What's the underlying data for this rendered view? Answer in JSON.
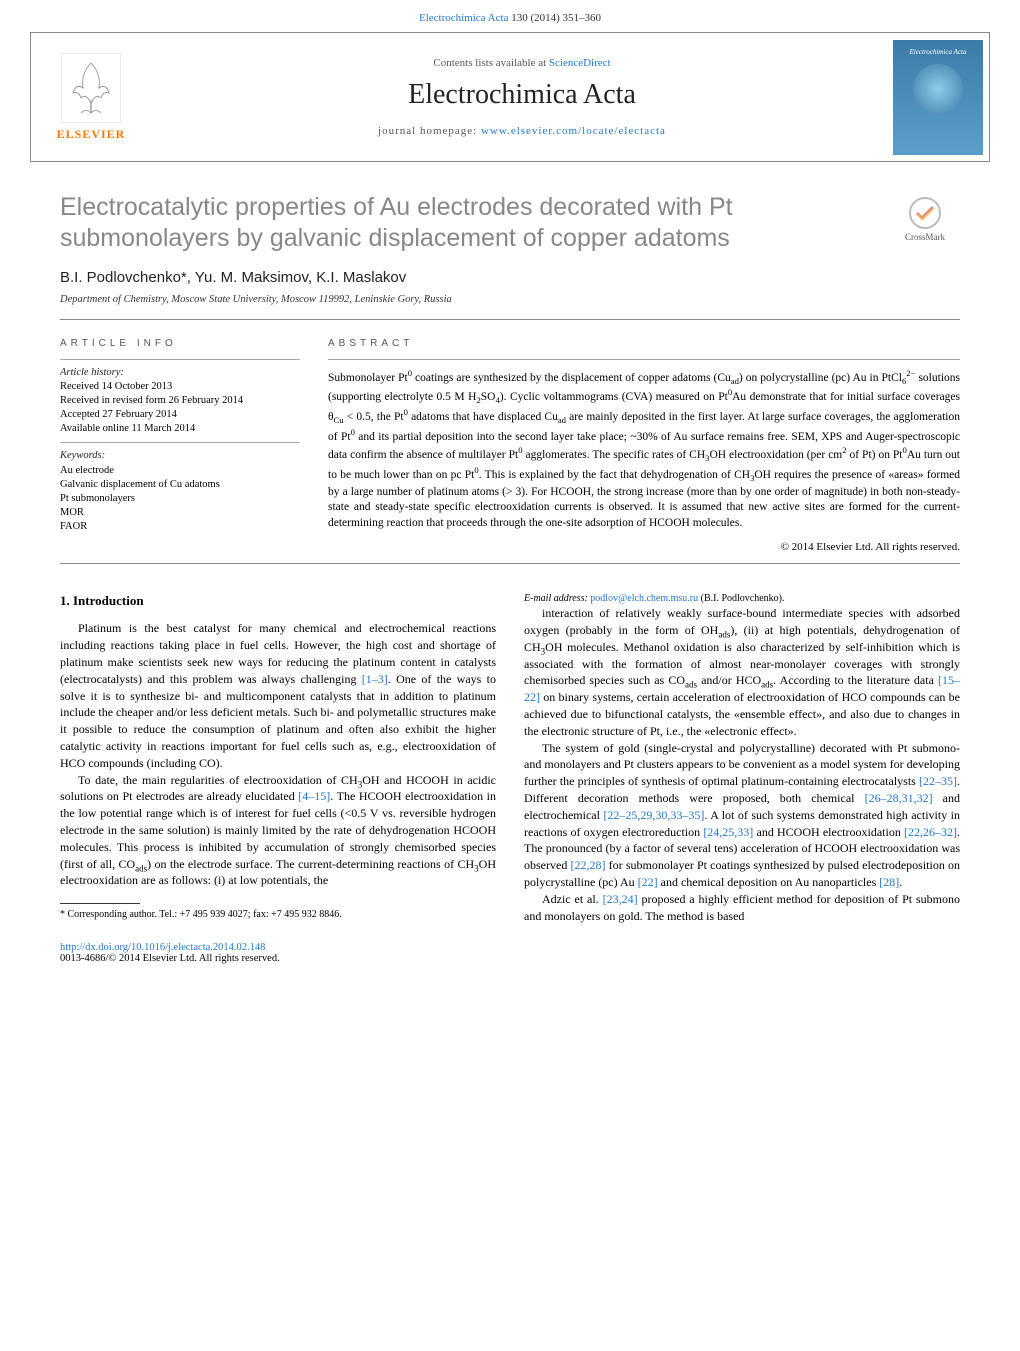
{
  "journal_ref": {
    "name": "Electrochimica Acta",
    "citation": "130 (2014) 351–360"
  },
  "header": {
    "contents_prefix": "Contents lists available at ",
    "contents_link": "ScienceDirect",
    "journal_title": "Electrochimica Acta",
    "homepage_prefix": "journal homepage: ",
    "homepage_url": "www.elsevier.com/locate/electacta",
    "publisher": "ELSEVIER",
    "cover_label": "Electrochimica Acta"
  },
  "crossmark_label": "CrossMark",
  "article": {
    "title": "Electrocatalytic properties of Au electrodes decorated with Pt submonolayers by galvanic displacement of copper adatoms",
    "authors": "B.I. Podlovchenko*, Yu. M. Maksimov, K.I. Maslakov",
    "affiliation": "Department of Chemistry, Moscow State University, Moscow 119992, Leninskie Gory, Russia"
  },
  "info": {
    "section_label": "ARTICLE INFO",
    "history_header": "Article history:",
    "history": "Received 14 October 2013\nReceived in revised form 26 February 2014\nAccepted 27 February 2014\nAvailable online 11 March 2014",
    "keywords_header": "Keywords:",
    "keywords": "Au electrode\nGalvanic displacement of Cu adatoms\nPt submonolayers\nMOR\nFAOR"
  },
  "abstract": {
    "section_label": "ABSTRACT",
    "text": "Submonolayer Pt⁰ coatings are synthesized by the displacement of copper adatoms (Cu_ad) on polycrystalline (pc) Au in PtCl₆²⁻ solutions (supporting electrolyte 0.5 M H₂SO₄). Cyclic voltammograms (CVA) measured on Pt⁰Au demonstrate that for initial surface coverages θ_Cu < 0.5, the Pt⁰ adatoms that have displaced Cu_ad are mainly deposited in the first layer. At large surface coverages, the agglomeration of Pt⁰ and its partial deposition into the second layer take place; ~30% of Au surface remains free. SEM, XPS and Auger-spectroscopic data confirm the absence of multilayer Pt⁰ agglomerates. The specific rates of CH₃OH electrooxidation (per cm² of Pt) on Pt⁰Au turn out to be much lower than on pc Pt⁰. This is explained by the fact that dehydrogenation of CH₃OH requires the presence of «areas» formed by a large number of platinum atoms (> 3). For HCOOH, the strong increase (more than by one order of magnitude) in both non-steady-state and steady-state specific electrooxidation currents is observed. It is assumed that new active sites are formed for the current-determining reaction that proceeds through the one-site adsorption of HCOOH molecules.",
    "copyright": "© 2014 Elsevier Ltd. All rights reserved."
  },
  "body": {
    "h_intro": "1. Introduction",
    "p1": "Platinum is the best catalyst for many chemical and electrochemical reactions including reactions taking place in fuel cells. However, the high cost and shortage of platinum make scientists seek new ways for reducing the platinum content in catalysts (electrocatalysts) and this problem was always challenging [1–3]. One of the ways to solve it is to synthesize bi- and multicomponent catalysts that in addition to platinum include the cheaper and/or less deficient metals. Such bi- and polymetallic structures make it possible to reduce the consumption of platinum and often also exhibit the higher catalytic activity in reactions important for fuel cells such as, e.g., electrooxidation of HCO compounds (including CO).",
    "p2": "To date, the main regularities of electrooxidation of CH₃OH and HCOOH in acidic solutions on Pt electrodes are already elucidated [4–15]. The HCOOH electrooxidation in the low potential range which is of interest for fuel cells (<0.5 V vs. reversible hydrogen electrode in the same solution) is mainly limited by the rate of dehydrogenation HCOOH molecules. This process is inhibited by accumulation of strongly chemisorbed species (first of all, CO_ads) on the electrode surface. The current-determining reactions of CH₃OH electrooxidation are as follows: (i) at low potentials, the",
    "p3": "interaction of relatively weakly surface-bound intermediate species with adsorbed oxygen (probably in the form of OH_ads), (ii) at high potentials, dehydrogenation of CH₃OH molecules. Methanol oxidation is also characterized by self-inhibition which is associated with the formation of almost near-monolayer coverages with strongly chemisorbed species such as CO_ads and/or HCO_ads. According to the literature data [15–22] on binary systems, certain acceleration of electrooxidation of HCO compounds can be achieved due to bifunctional catalysts, the «ensemble effect», and also due to changes in the electronic structure of Pt, i.e., the «electronic effect».",
    "p4": "The system of gold (single-crystal and polycrystalline) decorated with Pt submono- and monolayers and Pt clusters appears to be convenient as a model system for developing further the principles of synthesis of optimal platinum-containing electrocatalysts [22–35]. Different decoration methods were proposed, both chemical [26–28,31,32] and electrochemical [22–25,29,30,33–35]. A lot of such systems demonstrated high activity in reactions of oxygen electroreduction [24,25,33] and HCOOH electrooxidation [22,26–32]. The pronounced (by a factor of several tens) acceleration of HCOOH electrooxidation was observed [22,28] for submonolayer Pt coatings synthesized by pulsed electrodeposition on polycrystalline (pc) Au [22] and chemical deposition on Au nanoparticles [28].",
    "p5": "Adzic et al. [23,24] proposed a highly efficient method for deposition of Pt submono and monolayers on gold. The method is based",
    "refs": {
      "r1_3": "[1–3]",
      "r4_15": "[4–15]",
      "r15_22": "[15–22]",
      "r22_35": "[22–35]",
      "r26_28": "[26–28,31,32]",
      "r22_25": "[22–25,29,30,33–35]",
      "r24_25": "[24,25,33]",
      "r22_26": "[22,26–32]",
      "r22_28": "[22,28]",
      "r22": "[22]",
      "r28": "[28]",
      "r23_24": "[23,24]"
    }
  },
  "footnote": {
    "corr": "* Corresponding author. Tel.: +7 495 939 4027; fax: +7 495 932 8846.",
    "email_label": "E-mail address: ",
    "email": "podlov@elch.chem.msu.ru",
    "email_suffix": " (B.I. Podlovchenko)."
  },
  "doi": {
    "url": "http://dx.doi.org/10.1016/j.electacta.2014.02.148",
    "issn": "0013-4686/© 2014 Elsevier Ltd. All rights reserved."
  },
  "colors": {
    "link": "#2277cc",
    "title_gray": "#878787",
    "elsevier_orange": "#ff7700",
    "cover_grad_a": "#3b7ba8",
    "cover_grad_b": "#5a9fc9",
    "rule": "#888888"
  }
}
